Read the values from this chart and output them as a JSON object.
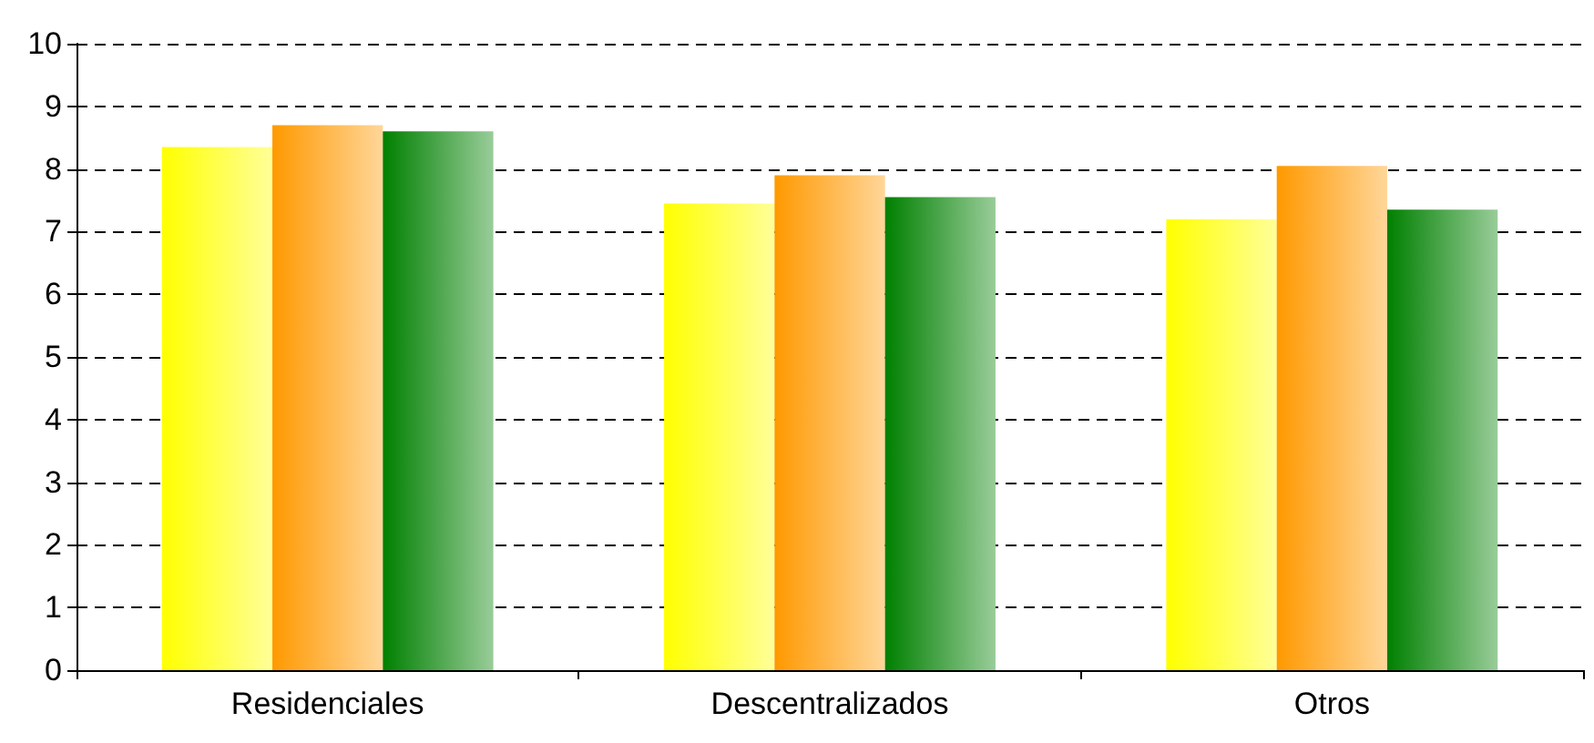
{
  "chart_data": {
    "type": "bar",
    "categories": [
      "Residenciales",
      "Descentralizados",
      "Otros"
    ],
    "series": [
      {
        "color": "#ffff00",
        "values": [
          8.35,
          7.45,
          7.2
        ]
      },
      {
        "color": "#ff9900",
        "values": [
          8.7,
          7.9,
          8.05
        ]
      },
      {
        "color": "#008000",
        "values": [
          8.6,
          7.55,
          7.35
        ]
      }
    ],
    "ylim": [
      0,
      10
    ],
    "yticks": [
      0,
      1,
      2,
      3,
      4,
      5,
      6,
      7,
      8,
      9,
      10
    ],
    "grid": "y"
  }
}
